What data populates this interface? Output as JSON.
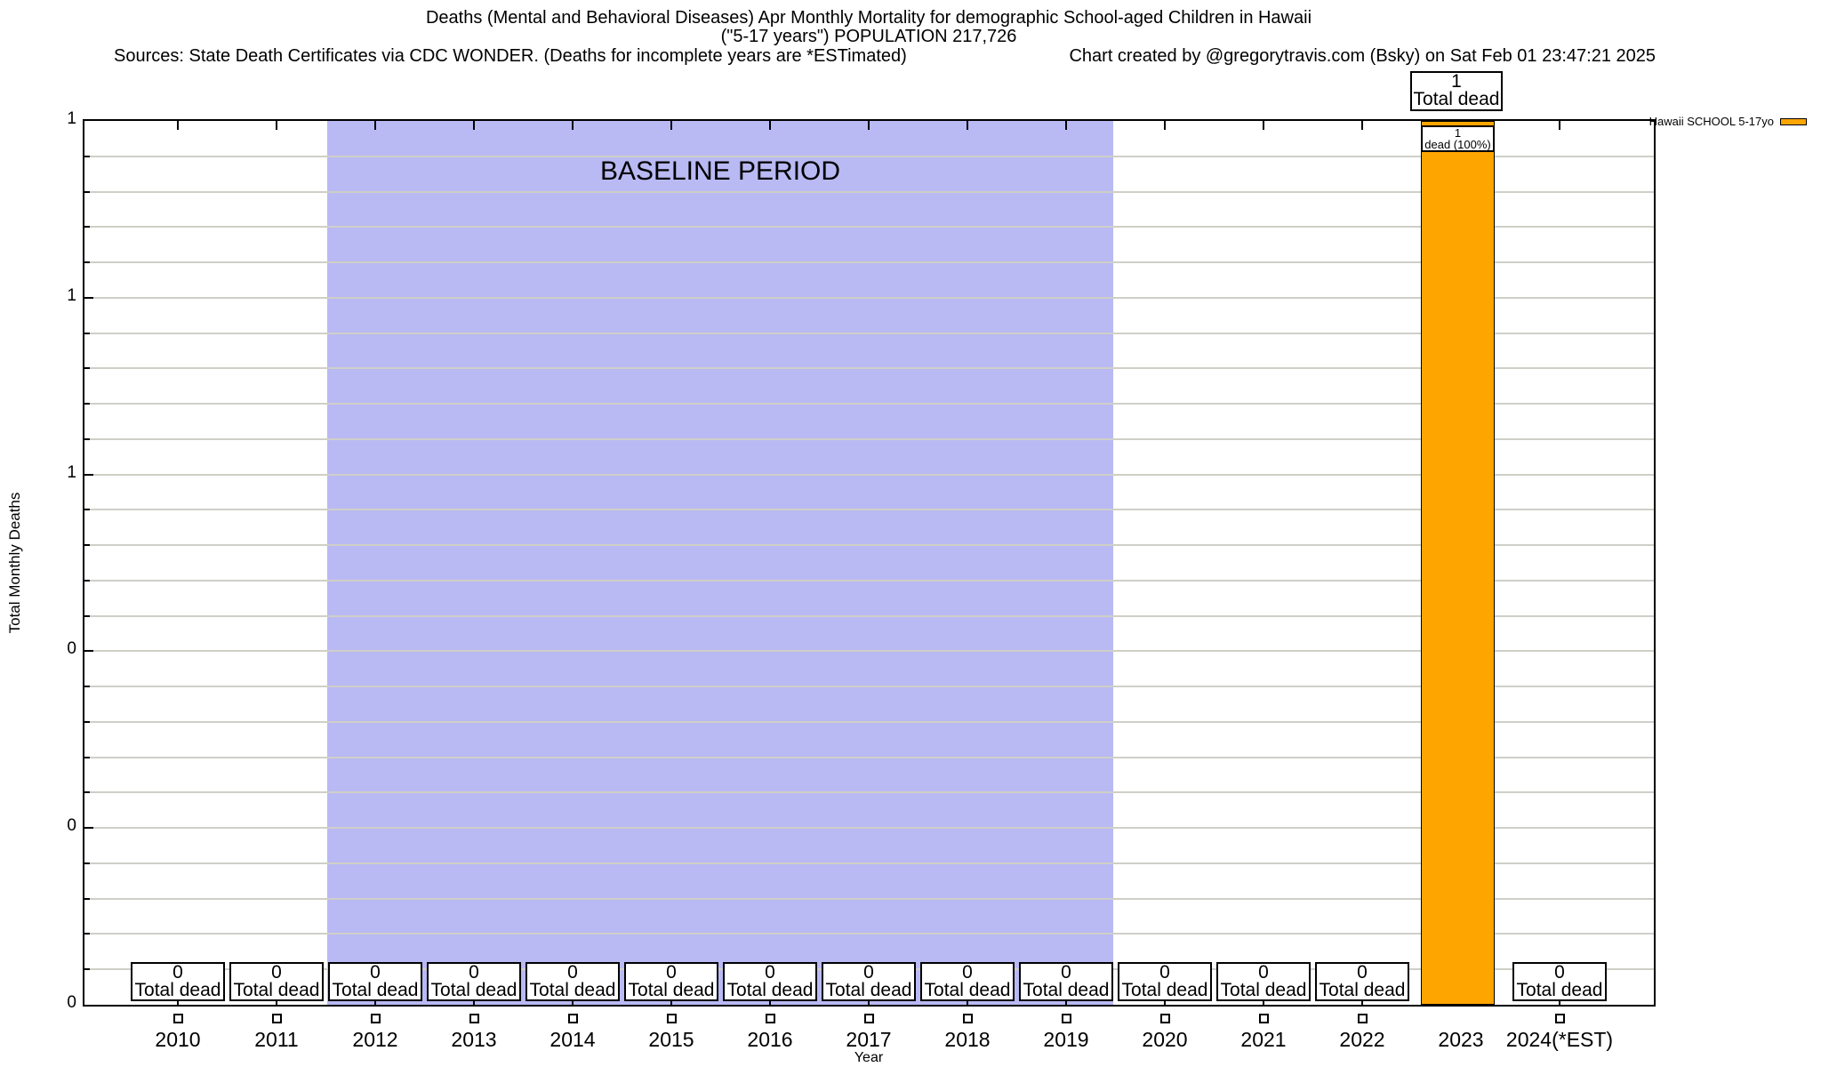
{
  "header": {
    "title_line1": "Deaths (Mental and Behavioral Diseases) Apr Monthly Mortality for demographic School-aged Children in Hawaii",
    "title_line2": "(\"5-17 years\") POPULATION 217,726",
    "sources": "Sources: State Death Certificates via CDC WONDER. (Deaths for incomplete years are *ESTimated)",
    "credit": "Chart created by @gregorytravis.com (Bsky) on Sat Feb 01 23:47:21 2025"
  },
  "chart_data": {
    "type": "bar",
    "title": "Deaths (Mental and Behavioral Diseases) Apr Monthly Mortality for demographic School-aged Children in Hawaii (\"5-17 years\") POPULATION 217,726",
    "xlabel": "Year",
    "ylabel": "Total Monthly Deaths",
    "ylim": [
      0,
      1
    ],
    "ytick_labels": [
      "1",
      "1",
      "1",
      "0",
      "0",
      "0"
    ],
    "grid": "horizontal-major-and-minor",
    "legend_position": "outside-top-right",
    "categories": [
      "2010",
      "2011",
      "2012",
      "2013",
      "2014",
      "2015",
      "2016",
      "2017",
      "2018",
      "2019",
      "2020",
      "2021",
      "2022",
      "2023",
      "2024(*EST)"
    ],
    "series": [
      {
        "name": "Hawaii SCHOOL 5-17yo",
        "color": "#ffa500",
        "values": [
          0,
          0,
          0,
          0,
          0,
          0,
          0,
          0,
          0,
          0,
          0,
          0,
          0,
          1,
          0
        ]
      }
    ],
    "baseline_region": {
      "label": "BASELINE PERIOD",
      "start_category": "2012",
      "end_category": "2019",
      "color": "#b9b9f3"
    },
    "zero_box_line2": "Total dead",
    "annotations": {
      "total_top": {
        "line1": "1",
        "line2": "Total dead"
      },
      "bar_inner": {
        "line1": "1",
        "line2": "dead (100%)"
      }
    }
  },
  "legend": {
    "label": "Hawaii SCHOOL 5-17yo",
    "swatch_color": "#ffa500"
  }
}
